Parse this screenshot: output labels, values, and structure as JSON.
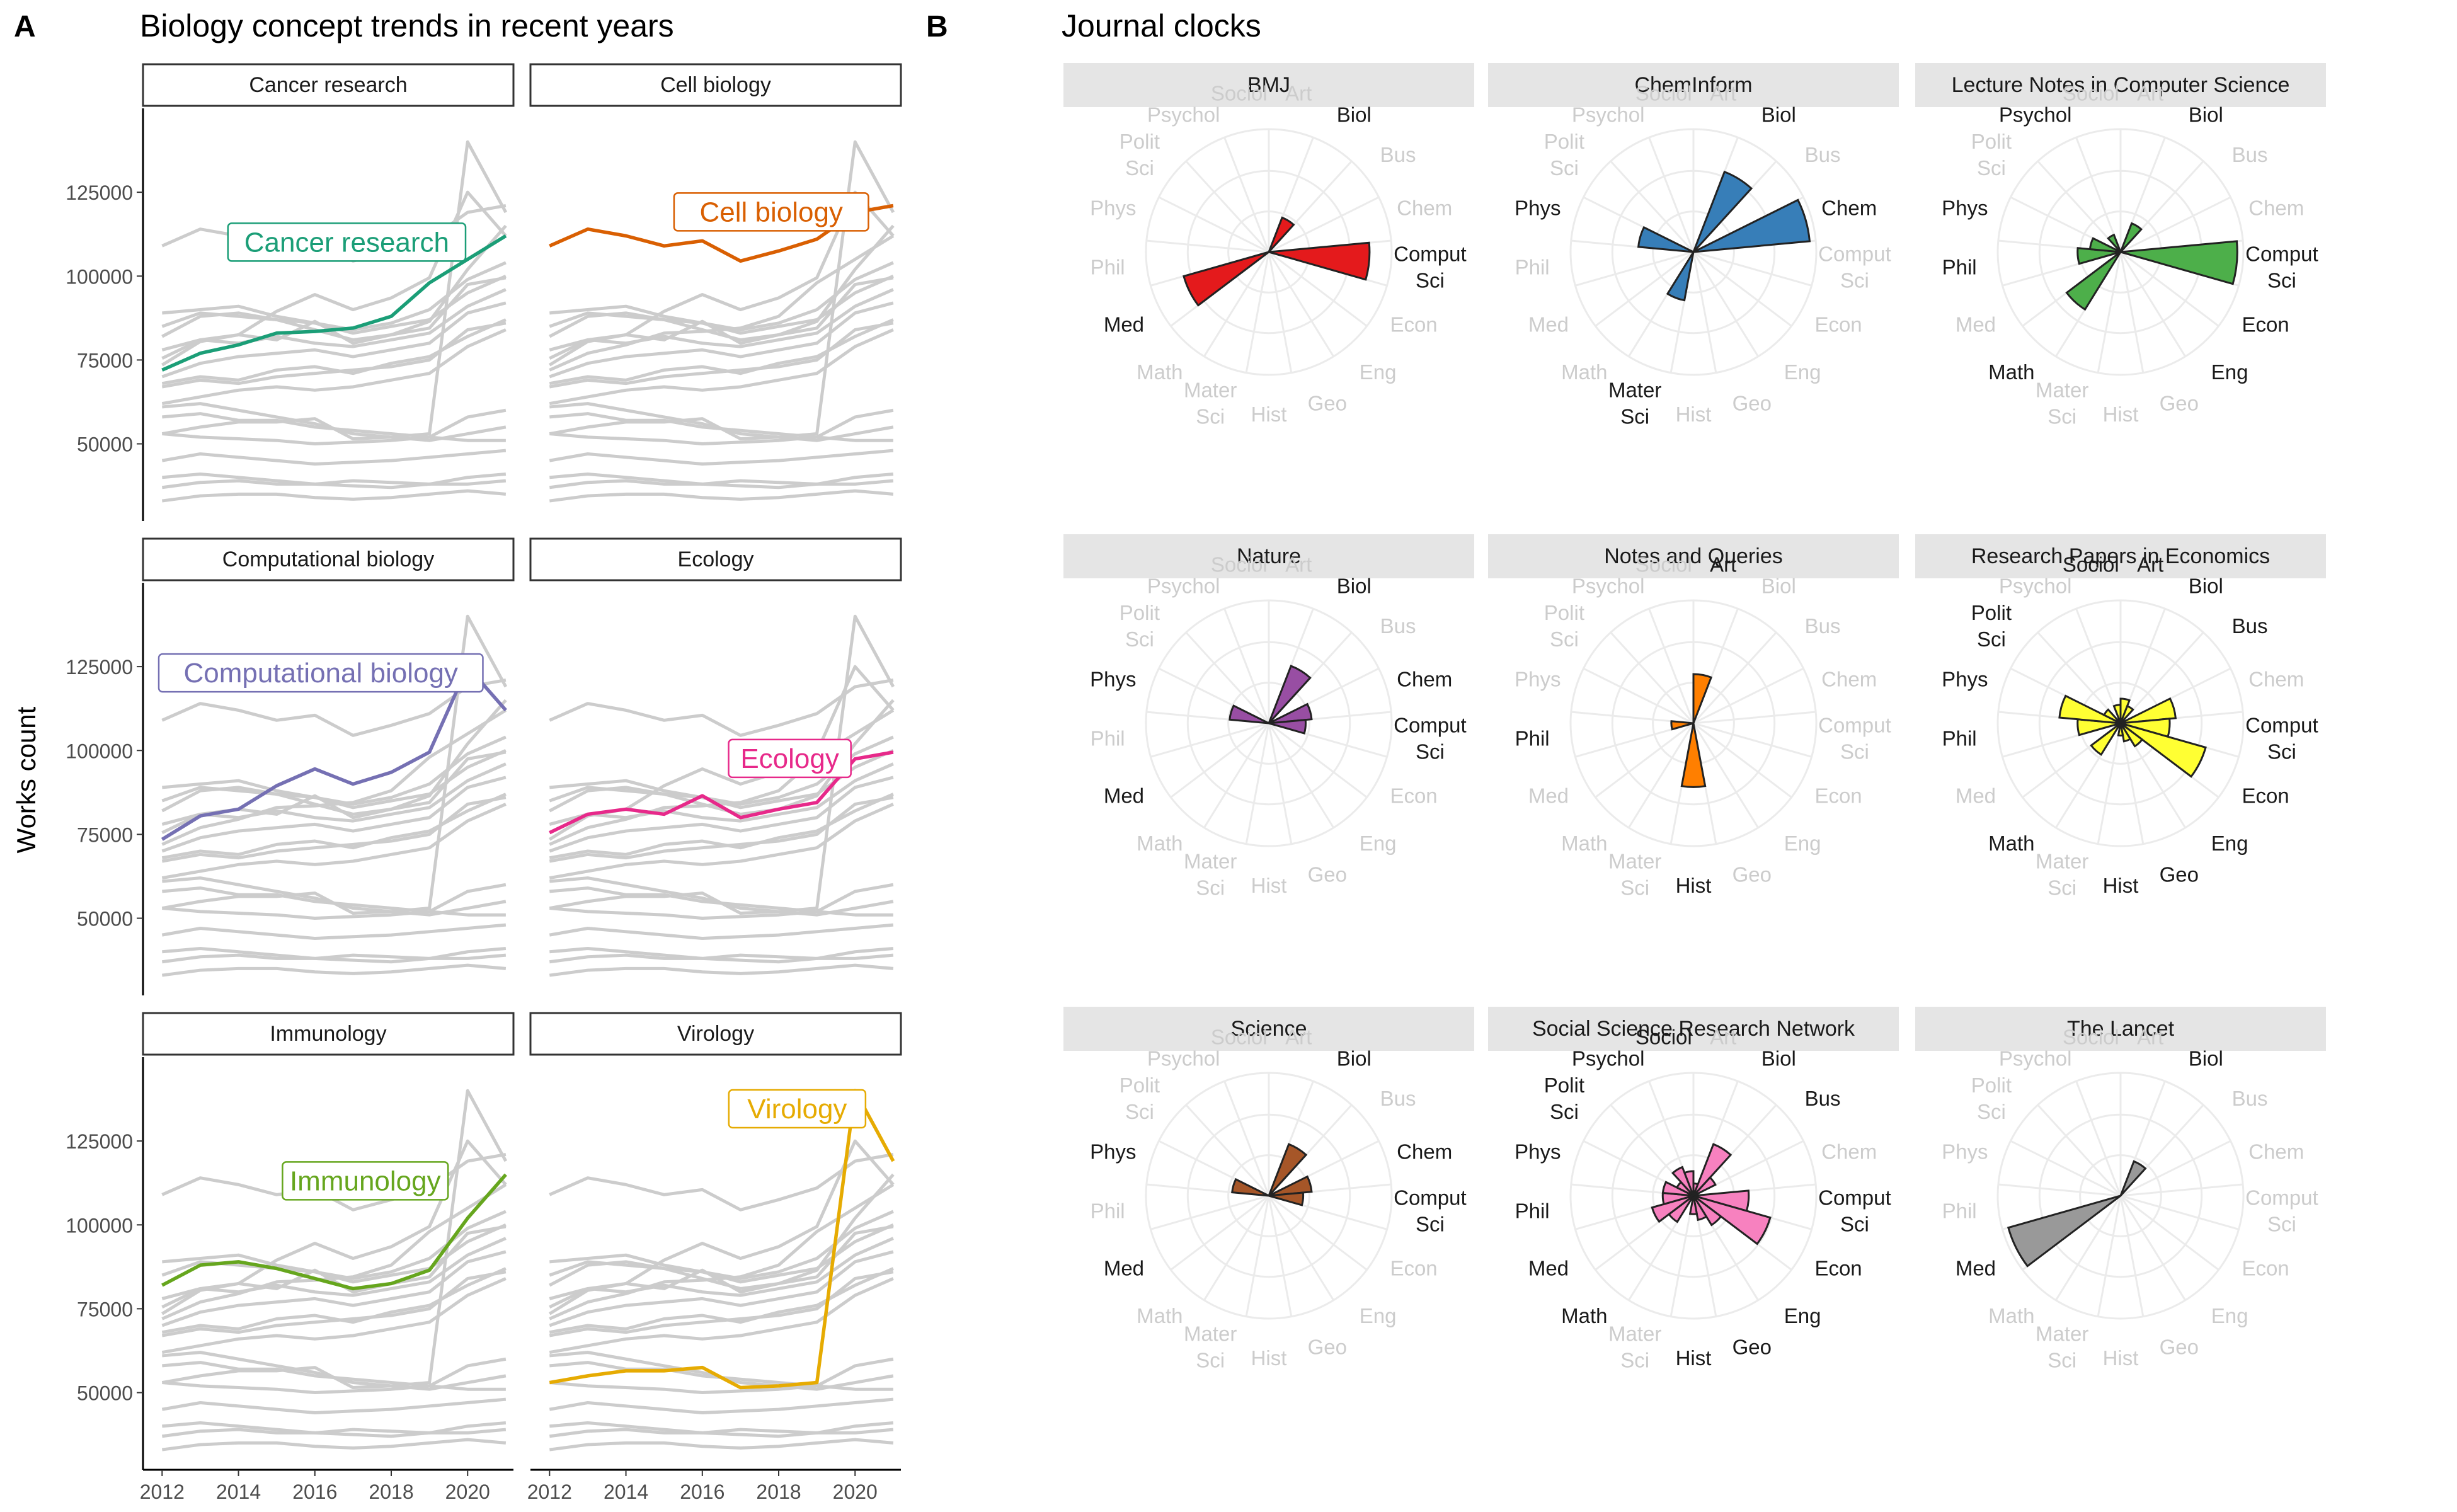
{
  "panel_a": {
    "letter": "A",
    "title": "Biology concept trends in recent years",
    "ylabel": "Works count",
    "x_ticks": [
      "2012",
      "2014",
      "2016",
      "2018",
      "2020"
    ],
    "y_ticks": [
      "50000",
      "75000",
      "100000",
      "125000"
    ]
  },
  "panel_b": {
    "letter": "B",
    "title": "Journal clocks"
  },
  "colors": {
    "Cancer research": "#1b9e77",
    "Cell biology": "#d95f02",
    "Computational biology": "#7570b3",
    "Ecology": "#e7298a",
    "Immunology": "#66a61e",
    "Virology": "#e6ab02",
    "background_line": "#cccccc",
    "BMJ": "#e41a1c",
    "ChemInform": "#377eb8",
    "Lecture Notes in Computer Science": "#4daf4a",
    "Nature": "#984ea3",
    "Notes and Queries": "#ff7f00",
    "Research Papers in Economics": "#ffff33",
    "Science": "#a65628",
    "Social Science Research Network": "#f781bf",
    "The Lancet": "#999999"
  },
  "chart_data": [
    {
      "type": "line",
      "title": "Biology concept trends in recent years",
      "ylabel": "Works count",
      "xlim": [
        2011.5,
        2021.2
      ],
      "ylim": [
        27000,
        150000
      ],
      "x": [
        2012,
        2013,
        2014,
        2015,
        2016,
        2017,
        2018,
        2019,
        2020,
        2021
      ],
      "facets": [
        "Cancer research",
        "Cell biology",
        "Computational biology",
        "Ecology",
        "Immunology",
        "Virology"
      ],
      "series": [
        {
          "name": "Cancer research",
          "values": [
            72000,
            77000,
            79500,
            83000,
            83500,
            84500,
            88000,
            98000,
            105000,
            112000
          ]
        },
        {
          "name": "Cell biology",
          "values": [
            109000,
            114000,
            112000,
            109000,
            110500,
            104500,
            107500,
            111000,
            119000,
            121000
          ]
        },
        {
          "name": "Computational biology",
          "values": [
            73500,
            80500,
            82500,
            89500,
            94500,
            90000,
            93500,
            99500,
            125000,
            112000
          ]
        },
        {
          "name": "Ecology",
          "values": [
            75500,
            81000,
            82500,
            81000,
            86500,
            80000,
            82500,
            84500,
            97500,
            99500
          ]
        },
        {
          "name": "Immunology",
          "values": [
            82000,
            88000,
            89000,
            87000,
            84000,
            81000,
            82500,
            86500,
            102000,
            115000
          ]
        },
        {
          "name": "Virology",
          "values": [
            53000,
            55000,
            56500,
            56500,
            57500,
            51500,
            52000,
            53000,
            140000,
            119000
          ]
        },
        {
          "values": [
            61000,
            62000,
            60000,
            58000,
            56000,
            53000,
            52000,
            51000,
            53000,
            55000
          ]
        },
        {
          "values": [
            58000,
            59000,
            57000,
            57000,
            55000,
            54000,
            53000,
            52000,
            51000,
            51000
          ]
        },
        {
          "values": [
            53000,
            52000,
            51500,
            51000,
            50000,
            50500,
            51000,
            52000,
            58000,
            60000
          ]
        },
        {
          "values": [
            45000,
            47000,
            46000,
            45000,
            44000,
            44500,
            45000,
            46000,
            47000,
            48000
          ]
        },
        {
          "values": [
            40000,
            41000,
            40000,
            39000,
            38000,
            37500,
            37000,
            38000,
            38000,
            39000
          ]
        },
        {
          "values": [
            37000,
            38500,
            39000,
            38000,
            38000,
            39000,
            38500,
            38000,
            40000,
            41000
          ]
        },
        {
          "values": [
            33000,
            34500,
            35000,
            35000,
            34000,
            33500,
            34000,
            35000,
            36000,
            35000
          ]
        },
        {
          "values": [
            68000,
            70000,
            69000,
            72000,
            73000,
            71000,
            74000,
            76000,
            82000,
            87000
          ]
        },
        {
          "values": [
            70000,
            74000,
            76000,
            77000,
            78000,
            76000,
            78000,
            80000,
            89000,
            92000
          ]
        },
        {
          "values": [
            78000,
            81000,
            80000,
            82000,
            80000,
            79000,
            81000,
            83000,
            91000,
            96000
          ]
        },
        {
          "values": [
            85000,
            89000,
            88000,
            87000,
            86000,
            83000,
            85000,
            87000,
            95000,
            100000
          ]
        },
        {
          "values": [
            89000,
            90000,
            91000,
            88000,
            86000,
            84000,
            86000,
            90000,
            99000,
            104000
          ]
        },
        {
          "values": [
            67000,
            69000,
            68000,
            70000,
            71000,
            72000,
            73000,
            75000,
            84000,
            86000
          ]
        },
        {
          "values": [
            62000,
            64000,
            66000,
            67000,
            66000,
            67000,
            69000,
            71000,
            79000,
            84000
          ]
        }
      ]
    },
    {
      "type": "polar-bar",
      "title": "Journal clocks",
      "categories": [
        "Art",
        "Biol",
        "Bus",
        "Chem",
        "Comput Sci",
        "Econ",
        "Eng",
        "Geo",
        "Hist",
        "Mater Sci",
        "Math",
        "Med",
        "Phil",
        "Phys",
        "Polit Sci",
        "Psychol",
        "Sociol"
      ],
      "rlim": [
        0,
        1
      ],
      "journals": [
        {
          "name": "BMJ",
          "values": [
            0,
            0.3,
            0,
            0,
            0.82,
            0,
            0,
            0,
            0,
            0,
            0,
            0.72,
            0,
            0,
            0,
            0,
            0
          ],
          "highlight": [
            "Biol",
            "Comput Sci",
            "Med"
          ]
        },
        {
          "name": "ChemInform",
          "values": [
            0,
            0.7,
            0,
            0.95,
            0,
            0,
            0,
            0,
            0,
            0.4,
            0,
            0,
            0,
            0.45,
            0,
            0,
            0
          ],
          "highlight": [
            "Biol",
            "Chem",
            "Phys",
            "Mater Sci"
          ]
        },
        {
          "name": "Lecture Notes in Computer Science",
          "values": [
            0,
            0.25,
            0,
            0,
            0.95,
            0,
            0,
            0,
            0,
            0,
            0.55,
            0,
            0.35,
            0.25,
            0,
            0.15,
            0
          ],
          "highlight": [
            "Psychol",
            "Biol",
            "Phys",
            "Comput Sci",
            "Phil",
            "Econ",
            "Math",
            "Eng"
          ]
        },
        {
          "name": "Nature",
          "values": [
            0,
            0.5,
            0,
            0.35,
            0.3,
            0,
            0,
            0,
            0,
            0,
            0,
            0,
            0,
            0.32,
            0,
            0,
            0
          ],
          "highlight": [
            "Biol",
            "Chem",
            "Phys",
            "Comput Sci",
            "Med"
          ]
        },
        {
          "name": "Notes and Queries",
          "values": [
            0.4,
            0,
            0,
            0,
            0,
            0,
            0,
            0,
            0.52,
            0,
            0,
            0,
            0.18,
            0,
            0,
            0,
            0
          ],
          "highlight": [
            "Art",
            "Phil",
            "Hist"
          ]
        },
        {
          "name": "Research Papers in Economics",
          "values": [
            0.2,
            0.15,
            0,
            0.45,
            0.4,
            0.72,
            0.22,
            0.15,
            0.1,
            0,
            0.3,
            0,
            0.35,
            0.5,
            0.15,
            0,
            0.15
          ],
          "highlight": [
            "Sociol",
            "Art",
            "Biol",
            "Polit Sci",
            "Bus",
            "Phys",
            "Comput Sci",
            "Phil",
            "Econ",
            "Math",
            "Eng",
            "Geo",
            "Hist"
          ]
        },
        {
          "name": "Science",
          "values": [
            0,
            0.45,
            0,
            0.35,
            0.28,
            0,
            0,
            0,
            0,
            0,
            0,
            0,
            0,
            0.3,
            0,
            0,
            0
          ],
          "highlight": [
            "Biol",
            "Chem",
            "Phys",
            "Comput Sci",
            "Med"
          ]
        },
        {
          "name": "Social Science Research Network",
          "values": [
            0.1,
            0.45,
            0.2,
            0,
            0.45,
            0.65,
            0.28,
            0.2,
            0.15,
            0,
            0.25,
            0.35,
            0.25,
            0.25,
            0.15,
            0.25,
            0.2
          ],
          "highlight": [
            "Sociol",
            "Psychol",
            "Biol",
            "Polit Sci",
            "Bus",
            "Phys",
            "Comput Sci",
            "Phil",
            "Med",
            "Econ",
            "Math",
            "Eng",
            "Geo",
            "Hist"
          ]
        },
        {
          "name": "The Lancet",
          "values": [
            0,
            0.3,
            0,
            0,
            0,
            0,
            0,
            0,
            0,
            0,
            0,
            0.95,
            0,
            0,
            0,
            0,
            0
          ],
          "highlight": [
            "Biol",
            "Med"
          ]
        }
      ]
    }
  ]
}
